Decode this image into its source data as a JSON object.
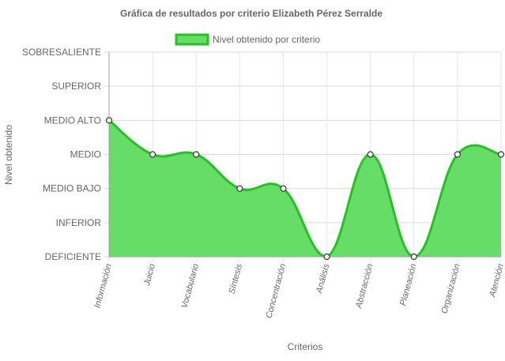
{
  "chart_data": {
    "type": "area",
    "title": "Gráfica de resultados por criterio Elizabeth Pérez Serralde",
    "xlabel": "Criterios",
    "ylabel": "Nivel obtenido",
    "categories": [
      "Información",
      "Juicio",
      "Vocabulario",
      "Síntesis",
      "Concentración",
      "Análisis",
      "Abstracción",
      "Planeación",
      "Organización",
      "Atención"
    ],
    "y_levels": [
      "DEFICIENTE",
      "INFERIOR",
      "MEDIO BAJO",
      "MEDIO",
      "MEDIO ALTO",
      "SUPERIOR",
      "SOBRESALIENTE"
    ],
    "ylim": [
      0,
      6
    ],
    "series": [
      {
        "name": "Nivel obtenido por criterio",
        "values": [
          4,
          3,
          3,
          2,
          2,
          0,
          3,
          0,
          3,
          3
        ],
        "color": "#22c322",
        "fill": "#66dd66"
      }
    ],
    "legend": "top-center",
    "grid": true,
    "smooth": true
  }
}
